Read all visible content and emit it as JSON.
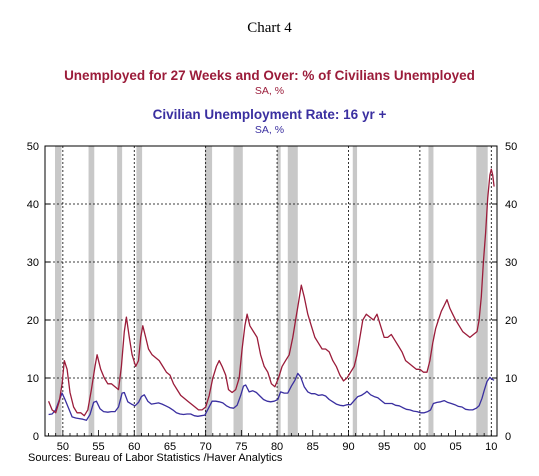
{
  "chart_data": {
    "type": "line",
    "title": "Chart 4",
    "series": [
      {
        "name": "Unemployed for 27 Weeks and Over: % of Civilians Unemployed",
        "unit": "SA, %",
        "color": "#9b1c3a",
        "axis": "right",
        "points": [
          [
            1948.0,
            6
          ],
          [
            1948.5,
            4.5
          ],
          [
            1949.0,
            4
          ],
          [
            1949.5,
            6
          ],
          [
            1949.9,
            9
          ],
          [
            1950.2,
            13
          ],
          [
            1950.6,
            11.5
          ],
          [
            1951.0,
            7.5
          ],
          [
            1951.5,
            5
          ],
          [
            1952.0,
            4
          ],
          [
            1952.5,
            4
          ],
          [
            1953.0,
            3.5
          ],
          [
            1953.5,
            4.5
          ],
          [
            1954.0,
            8
          ],
          [
            1954.5,
            12
          ],
          [
            1954.8,
            14
          ],
          [
            1955.3,
            11.5
          ],
          [
            1955.8,
            10
          ],
          [
            1956.3,
            9
          ],
          [
            1956.8,
            9
          ],
          [
            1957.3,
            8.5
          ],
          [
            1957.8,
            8
          ],
          [
            1958.2,
            12
          ],
          [
            1958.6,
            18
          ],
          [
            1958.9,
            20.5
          ],
          [
            1959.3,
            17
          ],
          [
            1959.7,
            14
          ],
          [
            1960.2,
            12
          ],
          [
            1960.6,
            13
          ],
          [
            1960.9,
            17
          ],
          [
            1961.2,
            19
          ],
          [
            1961.6,
            17
          ],
          [
            1962.0,
            15
          ],
          [
            1962.5,
            14
          ],
          [
            1963.0,
            13.5
          ],
          [
            1963.5,
            13
          ],
          [
            1964.0,
            12
          ],
          [
            1964.5,
            11
          ],
          [
            1965.0,
            10.5
          ],
          [
            1965.5,
            9
          ],
          [
            1966.0,
            8
          ],
          [
            1966.5,
            7
          ],
          [
            1967.0,
            6.5
          ],
          [
            1967.5,
            6
          ],
          [
            1968.0,
            5.5
          ],
          [
            1968.5,
            5
          ],
          [
            1969.0,
            4.5
          ],
          [
            1969.5,
            4.5
          ],
          [
            1970.0,
            5
          ],
          [
            1970.5,
            7
          ],
          [
            1971.0,
            10
          ],
          [
            1971.5,
            12
          ],
          [
            1971.9,
            13
          ],
          [
            1972.3,
            12
          ],
          [
            1972.8,
            10.5
          ],
          [
            1973.2,
            8
          ],
          [
            1973.7,
            7.5
          ],
          [
            1974.2,
            8
          ],
          [
            1974.7,
            10
          ],
          [
            1975.1,
            15
          ],
          [
            1975.5,
            19
          ],
          [
            1975.8,
            21
          ],
          [
            1976.2,
            19
          ],
          [
            1976.7,
            18
          ],
          [
            1977.2,
            17
          ],
          [
            1977.7,
            14
          ],
          [
            1978.2,
            12
          ],
          [
            1978.7,
            11
          ],
          [
            1979.2,
            9
          ],
          [
            1979.7,
            8.5
          ],
          [
            1980.2,
            10
          ],
          [
            1980.7,
            12
          ],
          [
            1981.2,
            13
          ],
          [
            1981.7,
            14
          ],
          [
            1982.2,
            17
          ],
          [
            1982.6,
            20
          ],
          [
            1983.0,
            23
          ],
          [
            1983.4,
            26
          ],
          [
            1983.8,
            24
          ],
          [
            1984.3,
            21
          ],
          [
            1984.8,
            19
          ],
          [
            1985.3,
            17
          ],
          [
            1985.8,
            16
          ],
          [
            1986.3,
            15
          ],
          [
            1986.8,
            15
          ],
          [
            1987.3,
            14.5
          ],
          [
            1987.8,
            13
          ],
          [
            1988.3,
            12
          ],
          [
            1988.8,
            10.5
          ],
          [
            1989.3,
            9.5
          ],
          [
            1989.8,
            10
          ],
          [
            1990.3,
            11
          ],
          [
            1990.8,
            12
          ],
          [
            1991.2,
            14
          ],
          [
            1991.6,
            17
          ],
          [
            1992.0,
            20
          ],
          [
            1992.5,
            21
          ],
          [
            1993.0,
            20.5
          ],
          [
            1993.5,
            20
          ],
          [
            1994.0,
            21
          ],
          [
            1994.5,
            19
          ],
          [
            1995.0,
            17
          ],
          [
            1995.5,
            17
          ],
          [
            1996.0,
            17.5
          ],
          [
            1996.5,
            16.5
          ],
          [
            1997.0,
            15.5
          ],
          [
            1997.5,
            14.5
          ],
          [
            1998.0,
            13
          ],
          [
            1998.5,
            12.5
          ],
          [
            1999.0,
            12
          ],
          [
            1999.5,
            11.5
          ],
          [
            2000.0,
            11.5
          ],
          [
            2000.5,
            11
          ],
          [
            2001.0,
            11
          ],
          [
            2001.4,
            13
          ],
          [
            2001.8,
            16
          ],
          [
            2002.2,
            18.5
          ],
          [
            2002.6,
            20
          ],
          [
            2003.0,
            21.5
          ],
          [
            2003.4,
            22.5
          ],
          [
            2003.8,
            23.5
          ],
          [
            2004.2,
            22
          ],
          [
            2004.6,
            21
          ],
          [
            2005.0,
            20
          ],
          [
            2005.5,
            19
          ],
          [
            2006.0,
            18
          ],
          [
            2006.5,
            17.5
          ],
          [
            2007.0,
            17
          ],
          [
            2007.5,
            17.5
          ],
          [
            2008.0,
            18
          ],
          [
            2008.3,
            20
          ],
          [
            2008.6,
            24
          ],
          [
            2008.9,
            30
          ],
          [
            2009.2,
            35
          ],
          [
            2009.5,
            41
          ],
          [
            2009.8,
            45
          ],
          [
            2010.0,
            46
          ],
          [
            2010.2,
            45
          ],
          [
            2010.4,
            43
          ]
        ]
      },
      {
        "name": "Civilian Unemployment Rate: 16 yr +",
        "unit": "SA, %",
        "color": "#3a2fa0",
        "axis": "right",
        "points": [
          [
            1948.0,
            3.7
          ],
          [
            1948.5,
            3.8
          ],
          [
            1949.0,
            4.5
          ],
          [
            1949.5,
            6.2
          ],
          [
            1949.9,
            7.4
          ],
          [
            1950.3,
            6.3
          ],
          [
            1950.8,
            4.8
          ],
          [
            1951.3,
            3.3
          ],
          [
            1951.8,
            3.1
          ],
          [
            1952.3,
            3.0
          ],
          [
            1952.8,
            2.9
          ],
          [
            1953.3,
            2.7
          ],
          [
            1953.8,
            3.7
          ],
          [
            1954.3,
            5.8
          ],
          [
            1954.7,
            6.0
          ],
          [
            1955.2,
            4.7
          ],
          [
            1955.7,
            4.2
          ],
          [
            1956.3,
            4.1
          ],
          [
            1956.8,
            4.2
          ],
          [
            1957.3,
            4.2
          ],
          [
            1957.8,
            5.0
          ],
          [
            1958.3,
            7.4
          ],
          [
            1958.6,
            7.5
          ],
          [
            1959.1,
            5.9
          ],
          [
            1959.6,
            5.5
          ],
          [
            1960.1,
            5.2
          ],
          [
            1960.6,
            5.8
          ],
          [
            1961.0,
            6.8
          ],
          [
            1961.4,
            7.1
          ],
          [
            1961.9,
            6.0
          ],
          [
            1962.4,
            5.5
          ],
          [
            1962.9,
            5.6
          ],
          [
            1963.4,
            5.7
          ],
          [
            1963.9,
            5.5
          ],
          [
            1964.4,
            5.2
          ],
          [
            1964.9,
            4.9
          ],
          [
            1965.4,
            4.5
          ],
          [
            1965.9,
            4.0
          ],
          [
            1966.4,
            3.8
          ],
          [
            1966.9,
            3.7
          ],
          [
            1967.4,
            3.8
          ],
          [
            1967.9,
            3.8
          ],
          [
            1968.4,
            3.5
          ],
          [
            1968.9,
            3.4
          ],
          [
            1969.4,
            3.5
          ],
          [
            1969.9,
            3.6
          ],
          [
            1970.4,
            4.8
          ],
          [
            1970.9,
            6.0
          ],
          [
            1971.4,
            6.0
          ],
          [
            1971.9,
            5.9
          ],
          [
            1972.4,
            5.7
          ],
          [
            1972.9,
            5.2
          ],
          [
            1973.4,
            4.9
          ],
          [
            1973.9,
            4.8
          ],
          [
            1974.4,
            5.3
          ],
          [
            1974.9,
            7.0
          ],
          [
            1975.3,
            8.6
          ],
          [
            1975.6,
            8.8
          ],
          [
            1976.1,
            7.6
          ],
          [
            1976.6,
            7.8
          ],
          [
            1977.1,
            7.5
          ],
          [
            1977.6,
            6.9
          ],
          [
            1978.1,
            6.3
          ],
          [
            1978.6,
            6.0
          ],
          [
            1979.1,
            5.9
          ],
          [
            1979.6,
            6.0
          ],
          [
            1980.1,
            6.3
          ],
          [
            1980.5,
            7.6
          ],
          [
            1981.0,
            7.4
          ],
          [
            1981.5,
            7.4
          ],
          [
            1982.0,
            8.6
          ],
          [
            1982.5,
            9.6
          ],
          [
            1982.9,
            10.8
          ],
          [
            1983.3,
            10.2
          ],
          [
            1983.8,
            8.5
          ],
          [
            1984.3,
            7.6
          ],
          [
            1984.8,
            7.3
          ],
          [
            1985.3,
            7.3
          ],
          [
            1985.8,
            7.0
          ],
          [
            1986.3,
            7.1
          ],
          [
            1986.8,
            6.9
          ],
          [
            1987.3,
            6.3
          ],
          [
            1987.8,
            5.9
          ],
          [
            1988.3,
            5.5
          ],
          [
            1988.8,
            5.3
          ],
          [
            1989.3,
            5.2
          ],
          [
            1989.8,
            5.4
          ],
          [
            1990.3,
            5.4
          ],
          [
            1990.8,
            6.1
          ],
          [
            1991.3,
            6.8
          ],
          [
            1991.8,
            7.0
          ],
          [
            1992.3,
            7.4
          ],
          [
            1992.6,
            7.7
          ],
          [
            1993.1,
            7.1
          ],
          [
            1993.6,
            6.8
          ],
          [
            1994.1,
            6.6
          ],
          [
            1994.6,
            6.1
          ],
          [
            1995.1,
            5.6
          ],
          [
            1995.6,
            5.6
          ],
          [
            1996.1,
            5.6
          ],
          [
            1996.6,
            5.3
          ],
          [
            1997.1,
            5.2
          ],
          [
            1997.6,
            4.9
          ],
          [
            1998.1,
            4.6
          ],
          [
            1998.6,
            4.5
          ],
          [
            1999.1,
            4.3
          ],
          [
            1999.6,
            4.2
          ],
          [
            2000.1,
            4.0
          ],
          [
            2000.6,
            4.0
          ],
          [
            2001.1,
            4.2
          ],
          [
            2001.5,
            4.5
          ],
          [
            2001.9,
            5.6
          ],
          [
            2002.4,
            5.8
          ],
          [
            2002.9,
            5.9
          ],
          [
            2003.4,
            6.1
          ],
          [
            2003.9,
            5.8
          ],
          [
            2004.4,
            5.6
          ],
          [
            2004.9,
            5.4
          ],
          [
            2005.4,
            5.1
          ],
          [
            2005.9,
            5.0
          ],
          [
            2006.4,
            4.6
          ],
          [
            2006.9,
            4.5
          ],
          [
            2007.4,
            4.5
          ],
          [
            2007.9,
            4.8
          ],
          [
            2008.3,
            5.2
          ],
          [
            2008.7,
            6.5
          ],
          [
            2009.0,
            7.8
          ],
          [
            2009.4,
            9.4
          ],
          [
            2009.8,
            10.1
          ],
          [
            2010.1,
            9.8
          ],
          [
            2010.4,
            9.6
          ]
        ]
      }
    ],
    "x": {
      "min": 1947.5,
      "max": 2010.8,
      "ticks": [
        1950,
        1955,
        1960,
        1965,
        1970,
        1975,
        1980,
        1985,
        1990,
        1995,
        2000,
        2005,
        2010
      ],
      "tick_labels": [
        "50",
        "55",
        "60",
        "65",
        "70",
        "75",
        "80",
        "85",
        "90",
        "95",
        "00",
        "05",
        "10"
      ],
      "decade_gridlines": [
        1950,
        1960,
        1970,
        1980,
        1990,
        2000,
        2010
      ]
    },
    "y_left": {
      "min": 0,
      "max": 50,
      "ticks": [
        0,
        10,
        20,
        30,
        40,
        50
      ]
    },
    "y_right": {
      "min": 0,
      "max": 50,
      "ticks": [
        0,
        10,
        20,
        30,
        40,
        50
      ]
    },
    "recessions": [
      [
        1948.9,
        1949.8
      ],
      [
        1953.6,
        1954.4
      ],
      [
        1957.6,
        1958.3
      ],
      [
        1960.3,
        1961.1
      ],
      [
        1969.9,
        1970.9
      ],
      [
        1973.9,
        1975.2
      ],
      [
        1980.0,
        1980.5
      ],
      [
        1981.5,
        1982.9
      ],
      [
        1990.6,
        1991.2
      ],
      [
        2001.2,
        2001.9
      ],
      [
        2007.9,
        2009.5
      ]
    ],
    "grid": "horizontal dashed at each y tick; vertical dashed at decades",
    "source": "Sources:  Bureau of Labor Statistics /Haver Analytics"
  }
}
